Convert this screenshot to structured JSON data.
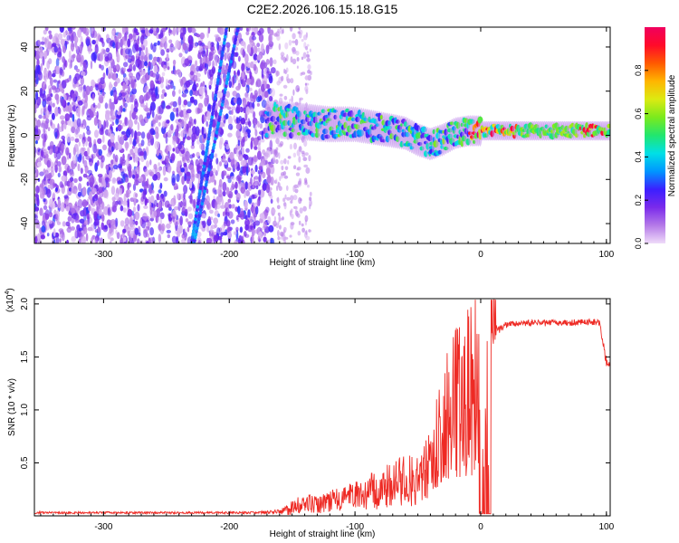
{
  "title": "C2E2.2026.106.15.18.G15",
  "chart_data": [
    {
      "type": "heatmap",
      "name": "spectrogram",
      "xlabel": "Height of straight line (km)",
      "ylabel": "Frequency (Hz)",
      "xlim": [
        -355,
        103
      ],
      "ylim": [
        -49,
        49
      ],
      "xticks": [
        -300,
        -200,
        -100,
        0,
        100
      ],
      "yticks": [
        -40,
        -20,
        0,
        20,
        40
      ],
      "colorbar": {
        "label": "Normalized spectral amplitude",
        "range": [
          0,
          1
        ],
        "ticks": [
          "0.0",
          "0.2",
          "0.4",
          "0.6",
          "0.8"
        ],
        "tick_values": [
          0.0,
          0.2,
          0.4,
          0.6,
          0.8
        ],
        "colors": [
          "#efdbf9",
          "#b57ae8",
          "#7a2aeb",
          "#3b1fff",
          "#0096ff",
          "#00e0e6",
          "#22e66e",
          "#7bea1d",
          "#dcea12",
          "#ffb500",
          "#ff5a00",
          "#ff0a2a",
          "#f0005e"
        ]
      },
      "features": {
        "noise_region_km": [
          -355,
          -165
        ],
        "sparse_noise_km": [
          -165,
          -135
        ],
        "signal_band": {
          "x_km": [
            -170,
            -160,
            -140,
            -120,
            -100,
            -90,
            -80,
            -70,
            -60,
            -50,
            -40,
            -30,
            -20,
            -10,
            0,
            20,
            40,
            60,
            80,
            103
          ],
          "center_hz": [
            7,
            7,
            6,
            5,
            5,
            4,
            3,
            2,
            1,
            -2,
            -4,
            -2,
            1,
            2,
            2,
            2,
            2,
            2,
            2,
            2
          ]
        },
        "fast_streaks": [
          {
            "x_km": [
              -230,
              -202
            ],
            "hz": [
              -49,
              49
            ]
          },
          {
            "x_km": [
              -228,
              -193
            ],
            "hz": [
              -49,
              49
            ]
          }
        ]
      }
    },
    {
      "type": "line",
      "name": "snr",
      "xlabel": "Height of straight line (km)",
      "ylabel": "SNR (10 * v/v)",
      "multiplier_label": "(x10",
      "multiplier_exponent": "4",
      "multiplier_close": ")",
      "xlim": [
        -355,
        103
      ],
      "ylim": [
        0,
        2.05
      ],
      "xticks": [
        -300,
        -200,
        -100,
        0,
        100
      ],
      "yticks": [
        0.5,
        1.0,
        1.5,
        2.0
      ],
      "ytick_labels": [
        "0.5",
        "1.0",
        "1.5",
        "2.0"
      ],
      "color": "#ee2a24",
      "series": [
        {
          "name": "SNR",
          "x": [
            -355,
            -300,
            -250,
            -200,
            -180,
            -160,
            -150,
            -140,
            -130,
            -120,
            -110,
            -100,
            -90,
            -80,
            -70,
            -60,
            -50,
            -40,
            -35,
            -30,
            -25,
            -20,
            -15,
            -10,
            -5,
            0,
            5,
            10,
            15,
            20,
            25,
            30,
            40,
            50,
            60,
            70,
            80,
            90,
            95,
            97,
            100,
            103
          ],
          "y": [
            0.03,
            0.03,
            0.03,
            0.03,
            0.03,
            0.04,
            0.07,
            0.12,
            0.1,
            0.14,
            0.16,
            0.18,
            0.22,
            0.25,
            0.3,
            0.35,
            0.38,
            0.5,
            0.7,
            0.9,
            1.0,
            1.1,
            1.2,
            1.3,
            1.35,
            1.4,
            1.55,
            1.7,
            1.76,
            1.8,
            1.81,
            1.82,
            1.82,
            1.82,
            1.82,
            1.82,
            1.83,
            1.83,
            1.82,
            1.65,
            1.45,
            1.43
          ],
          "spread": [
            0.01,
            0.01,
            0.01,
            0.01,
            0.01,
            0.02,
            0.08,
            0.1,
            0.08,
            0.1,
            0.12,
            0.14,
            0.17,
            0.2,
            0.22,
            0.25,
            0.3,
            0.35,
            0.35,
            0.4,
            0.45,
            0.45,
            0.4,
            0.35,
            0.3,
            0.25,
            0.2,
            0.1,
            0.04,
            0.03,
            0.03,
            0.03,
            0.03,
            0.03,
            0.03,
            0.03,
            0.03,
            0.03,
            0.03,
            0.05,
            0.04,
            0.04
          ]
        }
      ]
    }
  ]
}
